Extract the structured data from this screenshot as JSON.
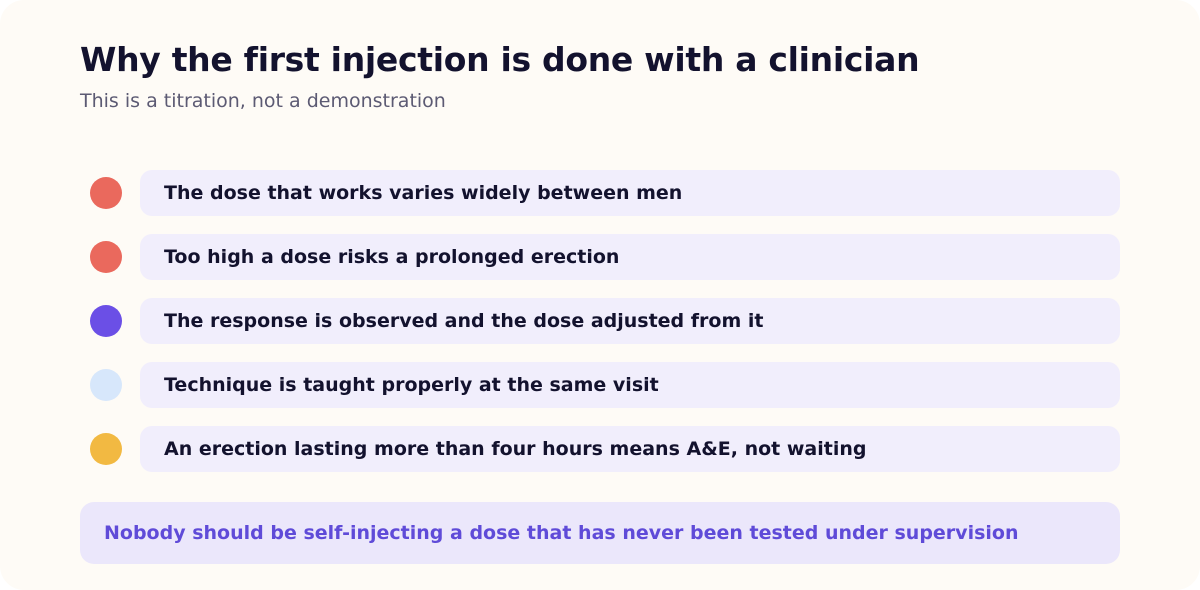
{
  "header": {
    "title": "Why the first injection is done with a clinician",
    "subtitle": "This is a titration, not a demonstration"
  },
  "points": [
    {
      "text": "The dose that works varies widely between men",
      "color": "#ea695d"
    },
    {
      "text": "Too high a dose risks a prolonged erection",
      "color": "#ea695d"
    },
    {
      "text": "The response is observed and the dose adjusted from it",
      "color": "#6b4fe6"
    },
    {
      "text": "Technique is taught properly at the same visit",
      "color": "#d7e7fb"
    },
    {
      "text": "An erection lasting more than four hours means A&E, not waiting",
      "color": "#f2b942"
    }
  ],
  "callout": {
    "text": "Nobody should be self-injecting a dose that has never been tested under supervision"
  }
}
